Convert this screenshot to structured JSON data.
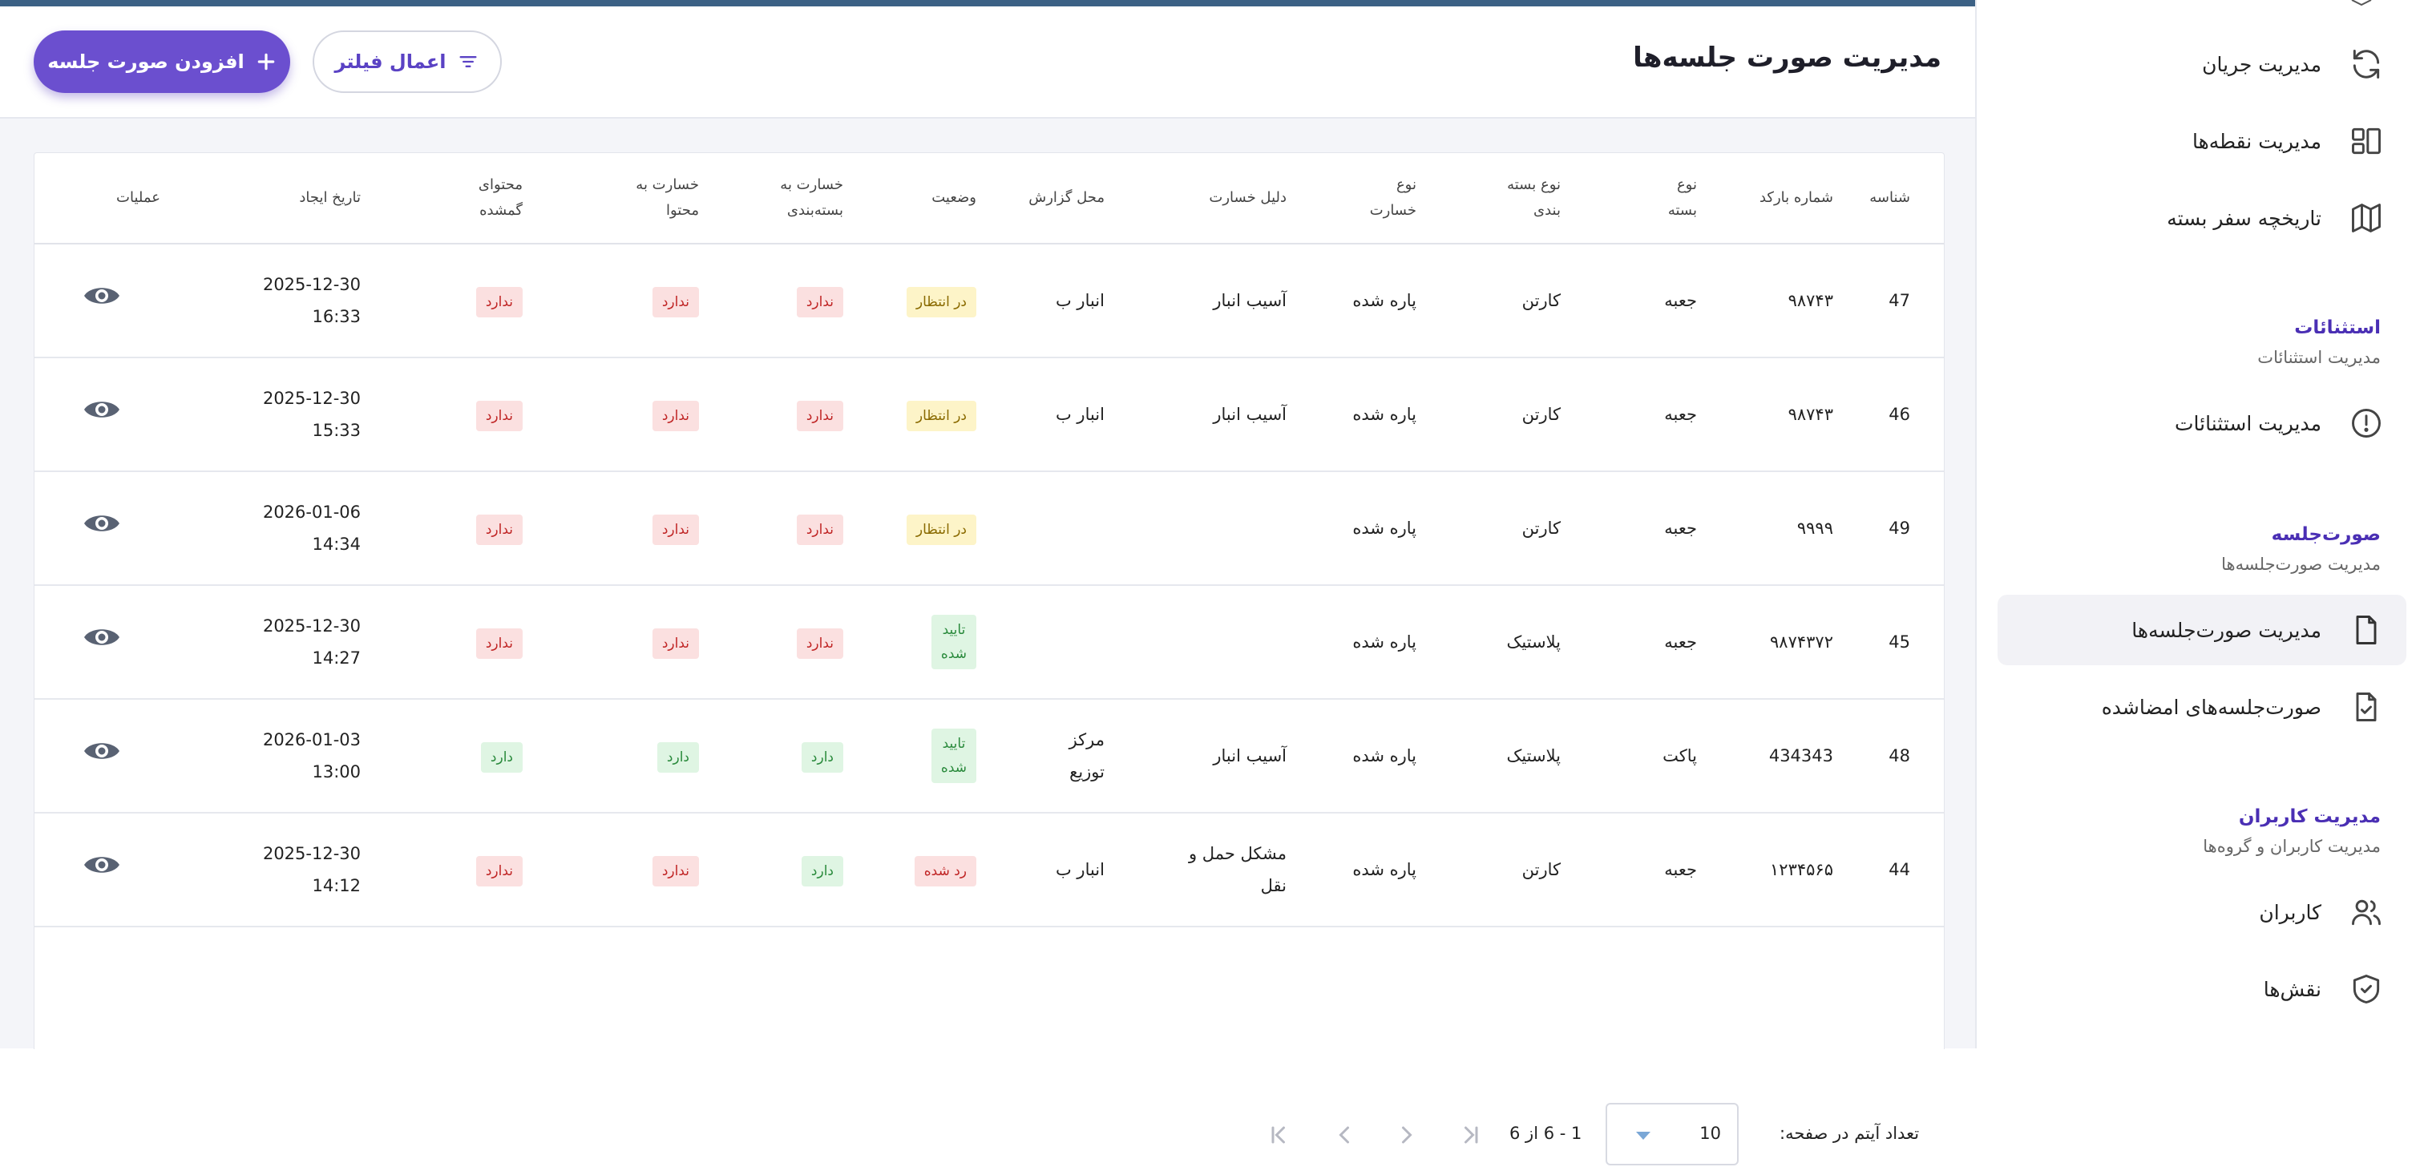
{
  "header": {
    "title": "مدیریت صورت جلسه‌ها",
    "add_label": "افزودن صورت جلسه",
    "filter_label": "اعمال فیلتر"
  },
  "table": {
    "columns": [
      {
        "key": "id",
        "label": "شناسه"
      },
      {
        "key": "barcode",
        "label": "شماره بارکد"
      },
      {
        "key": "pkg_type",
        "label": "نوع\nبسته"
      },
      {
        "key": "packaging",
        "label": "نوع بسته\nبندی"
      },
      {
        "key": "damage_type",
        "label": "نوع\nخسارت"
      },
      {
        "key": "damage_reason",
        "label": "دلیل خسارت"
      },
      {
        "key": "report_place",
        "label": "محل گزارش"
      },
      {
        "key": "status",
        "label": "وضعیت"
      },
      {
        "key": "pkg_damage",
        "label": "خسارت به\nبسته‌بندی"
      },
      {
        "key": "content_damage",
        "label": "خسارت به\nمحتوا"
      },
      {
        "key": "lost_content",
        "label": "محتوای\nگمشده"
      },
      {
        "key": "created",
        "label": "تاریخ ایجاد"
      },
      {
        "key": "actions",
        "label": "عملیات"
      }
    ],
    "rows": [
      {
        "id": "47",
        "barcode": "۹۸۷۴۳",
        "pkg_type": "جعبه",
        "packaging": "کارتن",
        "damage_type": "پاره شده",
        "damage_reason": "آسیب انبار",
        "report_place": "انبار ب",
        "status": "در انتظار",
        "status_kind": "pending",
        "pkg_damage": "ندارد",
        "pkg_damage_kind": "no",
        "content_damage": "ندارد",
        "content_damage_kind": "no",
        "lost_content": "ندارد",
        "lost_content_kind": "no",
        "created_date": "2025-12-30",
        "created_time": "16:33"
      },
      {
        "id": "46",
        "barcode": "۹۸۷۴۳",
        "pkg_type": "جعبه",
        "packaging": "کارتن",
        "damage_type": "پاره شده",
        "damage_reason": "آسیب انبار",
        "report_place": "انبار ب",
        "status": "در انتظار",
        "status_kind": "pending",
        "pkg_damage": "ندارد",
        "pkg_damage_kind": "no",
        "content_damage": "ندارد",
        "content_damage_kind": "no",
        "lost_content": "ندارد",
        "lost_content_kind": "no",
        "created_date": "2025-12-30",
        "created_time": "15:33"
      },
      {
        "id": "49",
        "barcode": "۹۹۹۹",
        "pkg_type": "جعبه",
        "packaging": "کارتن",
        "damage_type": "پاره شده",
        "damage_reason": "",
        "report_place": "",
        "status": "در انتظار",
        "status_kind": "pending",
        "pkg_damage": "ندارد",
        "pkg_damage_kind": "no",
        "content_damage": "ندارد",
        "content_damage_kind": "no",
        "lost_content": "ندارد",
        "lost_content_kind": "no",
        "created_date": "2026-01-06",
        "created_time": "14:34"
      },
      {
        "id": "45",
        "barcode": "۹۸۷۴۳۷۲",
        "pkg_type": "جعبه",
        "packaging": "پلاستیک",
        "damage_type": "پاره شده",
        "damage_reason": "",
        "report_place": "",
        "status": "تایید\nشده",
        "status_kind": "approved",
        "pkg_damage": "ندارد",
        "pkg_damage_kind": "no",
        "content_damage": "ندارد",
        "content_damage_kind": "no",
        "lost_content": "ندارد",
        "lost_content_kind": "no",
        "created_date": "2025-12-30",
        "created_time": "14:27"
      },
      {
        "id": "48",
        "barcode": "434343",
        "pkg_type": "پاکت",
        "packaging": "پلاستیک",
        "damage_type": "پاره شده",
        "damage_reason": "آسیب انبار",
        "report_place": "مرکز\nتوزیع",
        "status": "تایید\nشده",
        "status_kind": "approved",
        "pkg_damage": "دارد",
        "pkg_damage_kind": "yes",
        "content_damage": "دارد",
        "content_damage_kind": "yes",
        "lost_content": "دارد",
        "lost_content_kind": "yes",
        "created_date": "2026-01-03",
        "created_time": "13:00"
      },
      {
        "id": "44",
        "barcode": "۱۲۳۴۵۶۵",
        "pkg_type": "جعبه",
        "packaging": "کارتن",
        "damage_type": "پاره شده",
        "damage_reason": "مشکل حمل و\nنقل",
        "report_place": "انبار ب",
        "status": "رد شده",
        "status_kind": "rejected",
        "pkg_damage": "دارد",
        "pkg_damage_kind": "yes",
        "content_damage": "ندارد",
        "content_damage_kind": "no",
        "lost_content": "ندارد",
        "lost_content_kind": "no",
        "created_date": "2025-12-30",
        "created_time": "14:12"
      }
    ]
  },
  "pagination": {
    "per_page_label": "تعداد آیتم در صفحه:",
    "per_page_value": "10",
    "range_label": "1 - 6 از 6"
  },
  "sidebar": {
    "items_top": [
      {
        "name": "flow",
        "label": "مدیریت جریان",
        "icon": "refresh-icon"
      },
      {
        "name": "points",
        "label": "مدیریت نقطه‌ها",
        "icon": "layout-icon"
      },
      {
        "name": "trip-history",
        "label": "تاریخچه سفر بسته",
        "icon": "map-icon"
      }
    ],
    "sections": [
      {
        "title": "استثنائات",
        "subtitle": "مدیریت استثنائات"
      },
      {
        "title": "صورت‌جلسه",
        "subtitle": "مدیریت صورت‌جلسه‌ها"
      },
      {
        "title": "مدیریت کاربران",
        "subtitle": "مدیریت کاربران و گروه‌ها"
      }
    ],
    "exceptions_item": {
      "label": "مدیریت استثنائات",
      "icon": "alert-circle-icon"
    },
    "minutes_items": [
      {
        "label": "مدیریت صورت‌جلسه‌ها",
        "icon": "file-icon",
        "active": true
      },
      {
        "label": "صورت‌جلسه‌های امضاشده",
        "icon": "file-check-icon",
        "active": false
      }
    ],
    "users_items": [
      {
        "label": "کاربران",
        "icon": "users-icon"
      },
      {
        "label": "نقش‌ها",
        "icon": "shield-check-icon"
      }
    ]
  },
  "colors": {
    "accent": "#6b4fcf",
    "topbar": "#3c6185",
    "danger_bg": "#fbe0e0",
    "success_bg": "#dff5e3",
    "pending_bg": "#fdf4c8"
  }
}
